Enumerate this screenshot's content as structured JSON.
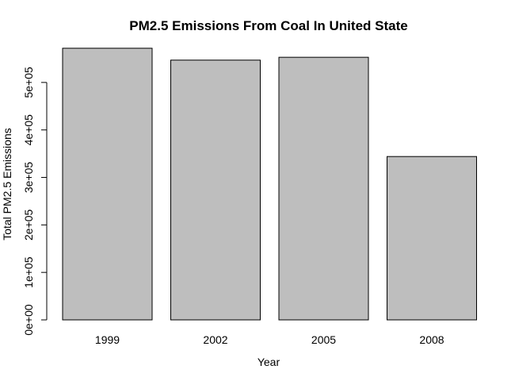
{
  "chart_data": {
    "type": "bar",
    "title": "PM2.5 Emissions From Coal In United State",
    "xlabel": "Year",
    "ylabel": "Total PM2.5 Emissions",
    "categories": [
      "1999",
      "2002",
      "2005",
      "2008"
    ],
    "values": [
      572000,
      547000,
      553000,
      344000
    ],
    "ylim": [
      0,
      575000
    ],
    "yticks": [
      0,
      100000,
      200000,
      300000,
      400000,
      500000
    ],
    "ytick_labels": [
      "0e+00",
      "1e+05",
      "2e+05",
      "3e+05",
      "4e+05",
      "5e+05"
    ],
    "grid": false,
    "bar_color": "#bebebe",
    "bar_border_color": "#000000"
  }
}
